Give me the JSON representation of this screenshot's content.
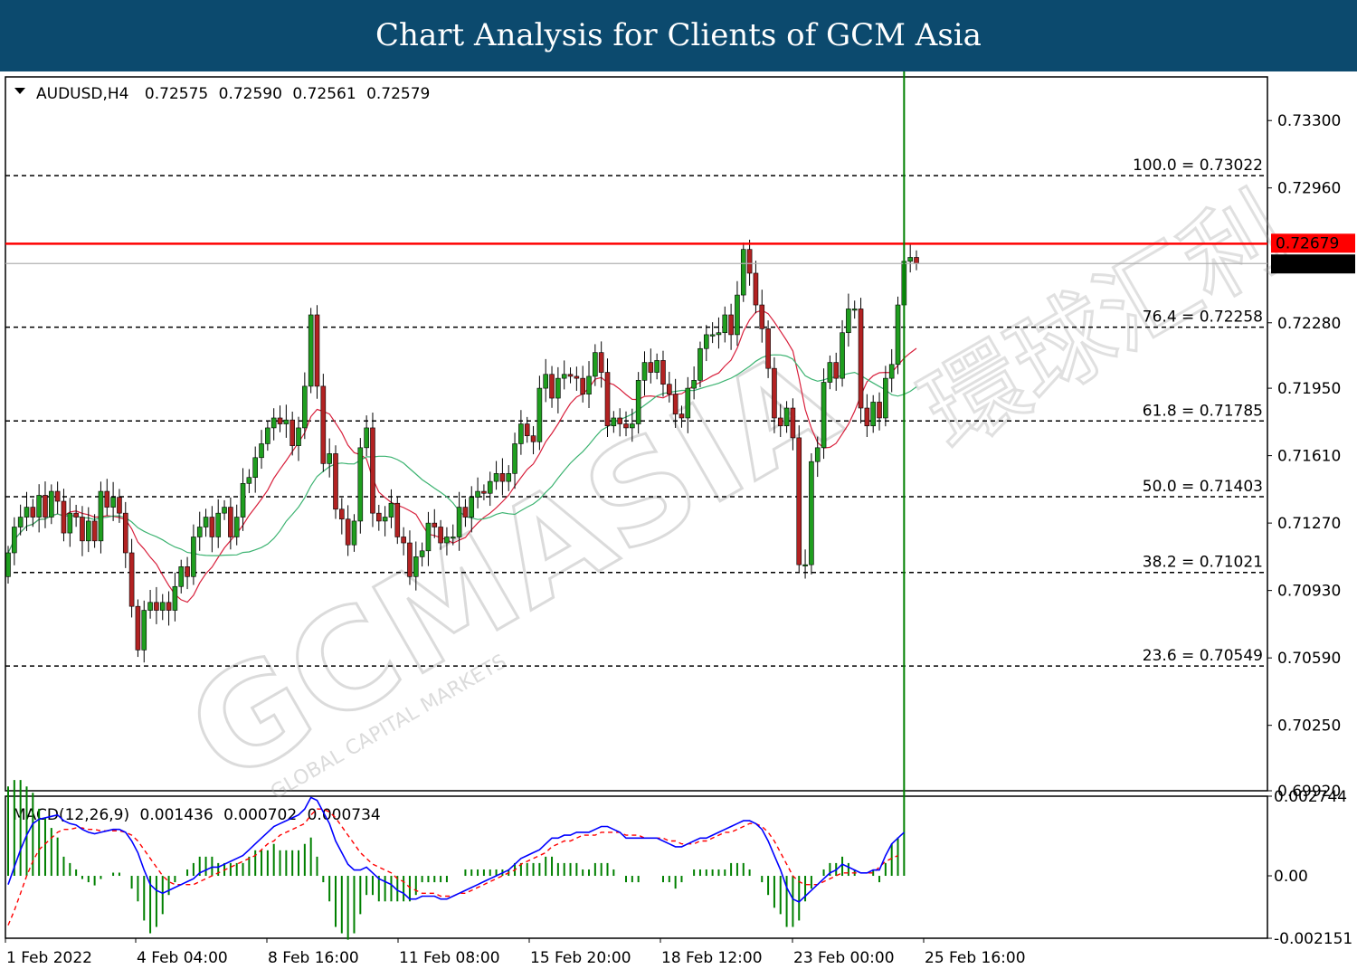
{
  "banner": {
    "title": "Chart Analysis for Clients of GCM Asia"
  },
  "watermark": {
    "text": "GCMASIA",
    "subtext": "GLOBAL CAPITAL MARKETS",
    "cjk": "環球汇利"
  },
  "colors": {
    "banner": "#0c4a6e",
    "up": "#1f9e1f",
    "down": "#b22222",
    "ma_red": "#d8203c",
    "ma_green": "#3cb371",
    "resistance": "#ff0000",
    "macd_line": "#0000ff",
    "macd_signal": "#ff0000",
    "macd_hist": "#008000"
  },
  "chart_data": [
    {
      "type": "candlestick",
      "symbol_header": "AUDUSD,H4",
      "ohlc_header": [
        "0.72575",
        "0.72590",
        "0.72561",
        "0.72579"
      ],
      "ylim": [
        0.6992,
        0.7352
      ],
      "y_ticks": [
        "0.73300",
        "0.72960",
        "0.72280",
        "0.71950",
        "0.71610",
        "0.71270",
        "0.70930",
        "0.70590",
        "0.70250",
        "0.69920"
      ],
      "x_labels": [
        "1 Feb 2022",
        "4 Feb 04:00",
        "8 Feb 16:00",
        "11 Feb 08:00",
        "15 Feb 20:00",
        "18 Feb 12:00",
        "23 Feb 00:00",
        "25 Feb 16:00"
      ],
      "fibonacci": [
        {
          "label": "100.0 = 0.73022",
          "value": 0.73022
        },
        {
          "label": "76.4 = 0.72258",
          "value": 0.72258
        },
        {
          "label": "61.8 = 0.71785",
          "value": 0.71785
        },
        {
          "label": "50.0 = 0.71403",
          "value": 0.71403
        },
        {
          "label": "38.2 = 0.71021",
          "value": 0.71021
        },
        {
          "label": "23.6 = 0.70549",
          "value": 0.70549
        }
      ],
      "resistance": {
        "label": "0.72679",
        "value": 0.72679
      },
      "current_price": {
        "label": "0.72579",
        "value": 0.72579
      },
      "closes": [
        0.7112,
        0.7125,
        0.713,
        0.7135,
        0.713,
        0.7141,
        0.713,
        0.7143,
        0.7138,
        0.7122,
        0.7132,
        0.713,
        0.7118,
        0.7128,
        0.7118,
        0.7143,
        0.7135,
        0.714,
        0.7132,
        0.7112,
        0.7085,
        0.7063,
        0.7083,
        0.7087,
        0.7083,
        0.7087,
        0.7083,
        0.7095,
        0.7105,
        0.71,
        0.712,
        0.7125,
        0.713,
        0.712,
        0.7132,
        0.7135,
        0.712,
        0.713,
        0.7147,
        0.715,
        0.716,
        0.7167,
        0.7175,
        0.718,
        0.7177,
        0.7179,
        0.7166,
        0.7175,
        0.7196,
        0.7232,
        0.7196,
        0.7157,
        0.7162,
        0.7134,
        0.7129,
        0.7116,
        0.7128,
        0.7165,
        0.7175,
        0.7132,
        0.7128,
        0.713,
        0.7137,
        0.712,
        0.7117,
        0.71,
        0.711,
        0.7113,
        0.7127,
        0.7125,
        0.7117,
        0.712,
        0.712,
        0.7135,
        0.713,
        0.714,
        0.7143,
        0.7142,
        0.7148,
        0.7152,
        0.7148,
        0.7152,
        0.7167,
        0.7177,
        0.7171,
        0.7168,
        0.7195,
        0.7202,
        0.719,
        0.72,
        0.7202,
        0.7201,
        0.72,
        0.7192,
        0.7201,
        0.7213,
        0.7203,
        0.7176,
        0.718,
        0.7177,
        0.7175,
        0.7177,
        0.7199,
        0.7208,
        0.7203,
        0.7209,
        0.7197,
        0.7192,
        0.7182,
        0.718,
        0.7195,
        0.7199,
        0.7215,
        0.7222,
        0.7222,
        0.7223,
        0.7232,
        0.7222,
        0.7242,
        0.7265,
        0.7253,
        0.7237,
        0.7225,
        0.7205,
        0.718,
        0.7176,
        0.7185,
        0.717,
        0.7106,
        0.7106,
        0.7158,
        0.7165,
        0.7198,
        0.7208,
        0.72,
        0.7223,
        0.7235,
        0.7235,
        0.7185,
        0.7176,
        0.7188,
        0.718,
        0.72,
        0.7207,
        0.7237,
        0.7259,
        0.7261,
        0.7258
      ],
      "macd_line": [
        -0.0003,
        0.0003,
        0.0009,
        0.0014,
        0.0018,
        0.00195,
        0.002,
        0.00205,
        0.0021,
        0.0019,
        0.0018,
        0.00175,
        0.0016,
        0.0015,
        0.00145,
        0.0015,
        0.00155,
        0.0016,
        0.0016,
        0.0015,
        0.0012,
        0.0008,
        0.0002,
        -0.0003,
        -0.0005,
        -0.0006,
        -0.0005,
        -0.0004,
        -0.0003,
        -0.0002,
        -0.0001,
        0.0001,
        0.0002,
        0.0003,
        0.0003,
        0.0004,
        0.0005,
        0.0006,
        0.0007,
        0.0009,
        0.0011,
        0.0013,
        0.0015,
        0.0017,
        0.0018,
        0.0019,
        0.002,
        0.0021,
        0.0023,
        0.0027,
        0.0026,
        0.0022,
        0.0018,
        0.0012,
        0.0008,
        0.0004,
        0.0002,
        0.0002,
        0.0003,
        0.0001,
        -0.0001,
        -0.0002,
        -0.0003,
        -0.0005,
        -0.0006,
        -0.0008,
        -0.0008,
        -0.0007,
        -0.0007,
        -0.0007,
        -0.0008,
        -0.0008,
        -0.0007,
        -0.0006,
        -0.0005,
        -0.0004,
        -0.0003,
        -0.0002,
        -0.0001,
        0.0,
        0.0001,
        0.0002,
        0.0004,
        0.0006,
        0.0007,
        0.0008,
        0.0009,
        0.0011,
        0.0013,
        0.0013,
        0.0014,
        0.0014,
        0.0015,
        0.0015,
        0.0015,
        0.0016,
        0.0017,
        0.0017,
        0.0016,
        0.0015,
        0.0013,
        0.0013,
        0.0013,
        0.0013,
        0.0013,
        0.0013,
        0.0012,
        0.0011,
        0.001,
        0.001,
        0.0011,
        0.0012,
        0.0013,
        0.0013,
        0.0014,
        0.0015,
        0.0016,
        0.0017,
        0.0018,
        0.0019,
        0.0019,
        0.0018,
        0.0016,
        0.0012,
        0.0007,
        0.0002,
        -0.0004,
        -0.0008,
        -0.0009,
        -0.0007,
        -0.0005,
        -0.0003,
        -0.0001,
        0.0001,
        0.0002,
        0.0004,
        0.0003,
        0.0002,
        0.0001,
        0.0001,
        0.0002,
        0.0002,
        0.0007,
        0.0011,
        0.0013,
        0.0015
      ],
      "macd_signal": [
        -0.0017,
        -0.0012,
        -0.0006,
        0.0,
        0.0005,
        0.0009,
        0.0011,
        0.0013,
        0.0015,
        0.0016,
        0.0016,
        0.00165,
        0.00165,
        0.0016,
        0.0016,
        0.00155,
        0.00155,
        0.00155,
        0.00155,
        0.0015,
        0.0014,
        0.0012,
        0.0009,
        0.0006,
        0.0003,
        0.0,
        -0.0002,
        -0.0003,
        -0.0003,
        -0.0003,
        -0.0003,
        -0.0002,
        -0.0001,
        0.0,
        0.0001,
        0.0002,
        0.0003,
        0.0004,
        0.0005,
        0.0006,
        0.0007,
        0.0009,
        0.0011,
        0.0012,
        0.0014,
        0.0015,
        0.0016,
        0.0017,
        0.0018,
        0.0021,
        0.0023,
        0.0023,
        0.0022,
        0.002,
        0.0017,
        0.0014,
        0.0011,
        0.0008,
        0.0006,
        0.0004,
        0.0003,
        0.0002,
        0.0001,
        -0.0001,
        -0.0002,
        -0.0004,
        -0.0005,
        -0.0006,
        -0.0006,
        -0.0006,
        -0.0007,
        -0.0007,
        -0.0007,
        -0.0006,
        -0.0006,
        -0.0005,
        -0.0004,
        -0.0003,
        -0.0002,
        -0.0001,
        0.0,
        0.0001,
        0.0002,
        0.0004,
        0.0005,
        0.0006,
        0.0007,
        0.0008,
        0.001,
        0.0011,
        0.0012,
        0.0012,
        0.0013,
        0.0014,
        0.0014,
        0.0014,
        0.0015,
        0.0015,
        0.0015,
        0.0015,
        0.0014,
        0.0014,
        0.0014,
        0.0013,
        0.0013,
        0.0013,
        0.0013,
        0.0012,
        0.0012,
        0.0011,
        0.0011,
        0.0011,
        0.0012,
        0.0012,
        0.0013,
        0.0014,
        0.0015,
        0.0015,
        0.0016,
        0.0017,
        0.0018,
        0.0018,
        0.0017,
        0.0015,
        0.0012,
        0.0008,
        0.0004,
        0.0,
        -0.0002,
        -0.0003,
        -0.0003,
        -0.0003,
        -0.0002,
        -0.0001,
        0.0,
        0.0001,
        0.0001,
        0.0001,
        0.0001,
        0.0001,
        0.0001,
        0.0003,
        0.0005,
        0.0006,
        0.0007
      ],
      "macd_header": [
        "MACD(12,26,9)",
        "0.001436",
        "0.000702",
        "0.000734"
      ],
      "macd_ylim": [
        -0.00215,
        0.002744
      ],
      "macd_ticks": [
        "0.002744",
        "0.00",
        "-0.002151"
      ]
    }
  ]
}
